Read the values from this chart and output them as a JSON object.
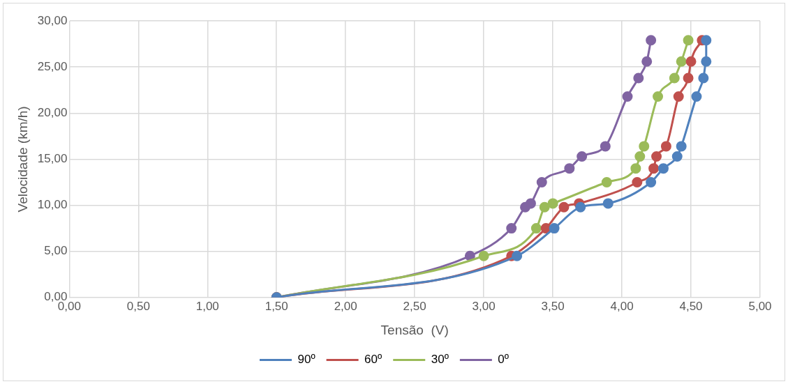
{
  "chart_data": {
    "type": "line",
    "xlabel": "Tensão  (V)",
    "ylabel": "Velocidade (km/h)",
    "xlim": [
      0,
      5
    ],
    "xticks": [
      {
        "value": 0,
        "label": "0,00"
      },
      {
        "value": 0.5,
        "label": "0,50"
      },
      {
        "value": 1,
        "label": "1,00"
      },
      {
        "value": 1.5,
        "label": "1,50"
      },
      {
        "value": 2,
        "label": "2,00"
      },
      {
        "value": 2.5,
        "label": "2,50"
      },
      {
        "value": 3,
        "label": "3,00"
      },
      {
        "value": 3.5,
        "label": "3,50"
      },
      {
        "value": 4,
        "label": "4,00"
      },
      {
        "value": 4.5,
        "label": "4,50"
      },
      {
        "value": 5,
        "label": "5,00"
      }
    ],
    "ylim": [
      0,
      30
    ],
    "yticks": [
      {
        "value": 0,
        "label": "0,00"
      },
      {
        "value": 5,
        "label": "5,00"
      },
      {
        "value": 10,
        "label": "10,00"
      },
      {
        "value": 15,
        "label": "15,00"
      },
      {
        "value": 20,
        "label": "20,00"
      },
      {
        "value": 25,
        "label": "25,00"
      },
      {
        "value": 30,
        "label": "30,00"
      }
    ],
    "grid": true,
    "legend": "bottom",
    "marker": "circle",
    "line_style": "solid",
    "series": [
      {
        "name": "90º",
        "color": "#4f81bd",
        "x": [
          1.5,
          3.24,
          3.51,
          3.7,
          3.9,
          4.21,
          4.3,
          4.4,
          4.43,
          4.54,
          4.59,
          4.61,
          4.61
        ],
        "values": [
          0,
          4.5,
          7.5,
          9.8,
          10.2,
          12.5,
          14,
          15.3,
          16.4,
          21.8,
          23.8,
          25.6,
          27.9
        ]
      },
      {
        "name": "60º",
        "color": "#c0504d",
        "x": [
          1.5,
          3.2,
          3.45,
          3.58,
          3.69,
          4.11,
          4.23,
          4.25,
          4.32,
          4.41,
          4.48,
          4.5,
          4.58
        ],
        "values": [
          0,
          4.5,
          7.5,
          9.8,
          10.2,
          12.5,
          14,
          15.3,
          16.4,
          21.8,
          23.8,
          25.6,
          27.9
        ]
      },
      {
        "name": "30º",
        "color": "#9bbb59",
        "x": [
          1.5,
          3,
          3.38,
          3.44,
          3.5,
          3.89,
          4.1,
          4.13,
          4.16,
          4.26,
          4.38,
          4.43,
          4.48
        ],
        "values": [
          0,
          4.5,
          7.5,
          9.8,
          10.2,
          12.5,
          14,
          15.3,
          16.4,
          21.8,
          23.8,
          25.6,
          27.9
        ]
      },
      {
        "name": "0º",
        "color": "#8064a2",
        "x": [
          1.5,
          2.9,
          3.2,
          3.3,
          3.34,
          3.42,
          3.62,
          3.71,
          3.88,
          4.04,
          4.12,
          4.18,
          4.21
        ],
        "values": [
          0,
          4.5,
          7.5,
          9.8,
          10.2,
          12.5,
          14,
          15.3,
          16.4,
          21.8,
          23.8,
          25.6,
          27.9
        ]
      }
    ]
  }
}
